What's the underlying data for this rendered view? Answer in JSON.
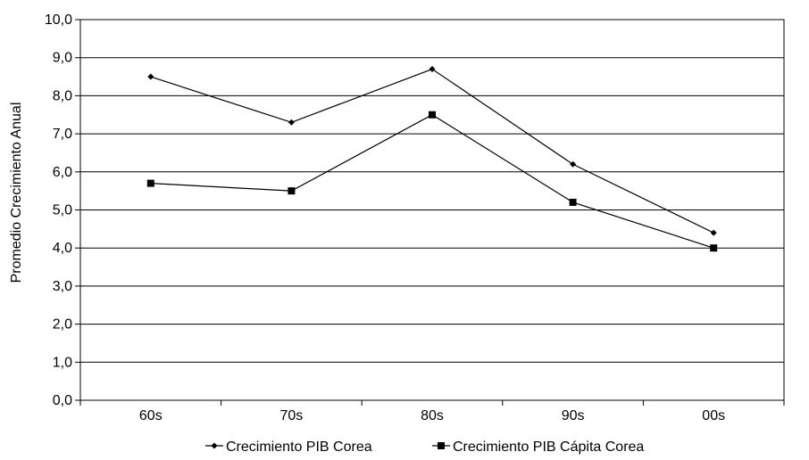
{
  "chart_data": {
    "type": "line",
    "title": "",
    "xlabel": "",
    "ylabel": "Promedio Crecimiento Anual",
    "categories": [
      "60s",
      "70s",
      "80s",
      "90s",
      "00s"
    ],
    "ylim": [
      0,
      10
    ],
    "yticks": [
      "0,0",
      "1,0",
      "2,0",
      "3,0",
      "4,0",
      "5,0",
      "6,0",
      "7,0",
      "8,0",
      "9,0",
      "10,0"
    ],
    "grid": "horizontal",
    "legend_position": "bottom",
    "series": [
      {
        "name": "Crecimiento PIB Corea",
        "marker": "diamond",
        "color": "#000000",
        "values": [
          8.5,
          7.3,
          8.7,
          6.2,
          4.4
        ]
      },
      {
        "name": "Crecimiento PIB Cápita Corea",
        "marker": "square",
        "color": "#000000",
        "values": [
          5.7,
          5.5,
          7.5,
          5.2,
          4.0
        ]
      }
    ]
  }
}
